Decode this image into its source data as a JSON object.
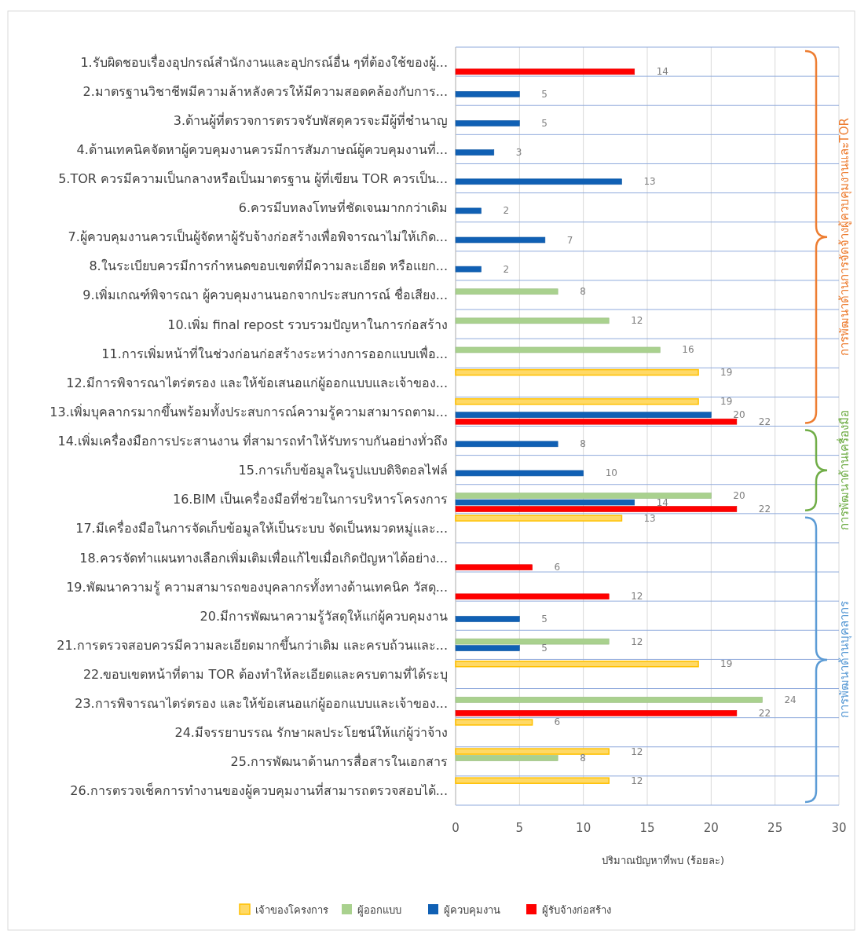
{
  "chart_data": {
    "type": "bar",
    "orientation": "horizontal",
    "xlabel": "ปริมาณปัญหาที่พบ (ร้อยละ)",
    "categories": [
      "1.รับผิดชอบเรื่องอุปกรณ์สำนักงานและอุปกรณ์อื่น ๆที่ต้องใช้ของผู้...",
      "2.มาตรฐานวิชาชีพมีความล้าหลังควรให้มีความสอดคล้องกับการ...",
      "3.ด้านผู้ที่ตรวจการตรวจรับพัสดุควรจะมีผู้ที่ชำนาญ",
      "4.ด้านเทคนิคจัดหาผู้ควบคุมงานควรมีการสัมภาษณ์ผู้ควบคุมงานที่...",
      "5.TOR ควรมีความเป็นกลางหรือเป็นมาตรฐาน ผู้ที่เขียน TOR ควรเป็น...",
      "6.ควรมีบทลงโทษที่ชัดเจนมากกว่าเดิม",
      "7.ผู้ควบคุมงานควรเป็นผู้จัดหาผู้รับจ้างก่อสร้างเพื่อพิจารณาไม่ให้เกิด...",
      "8.ในระเบียบควรมีการกำหนดขอบเขตที่มีความละเอียด หรือแยก...",
      "9.เพิ่มเกณฑ์พิจารณา ผู้ควบคุมงานนอกจากประสบการณ์ ชื่อเสียง...",
      "10.เพิ่ม final repost รวบรวมปัญหาในการก่อสร้าง",
      "11.การเพิ่มหน้าที่ในช่วงก่อนก่อสร้างระหว่างการออกแบบเพื่อ...",
      "12.มีการพิจารณาไตร่ตรอง และให้ข้อเสนอแก่ผู้ออกแบบและเจ้าของ...",
      "13.เพิ่มบุคลากรมากขึ้นพร้อมทั้งประสบการณ์ความรู้ความสามารถตาม...",
      "14.เพิ่มเครื่องมือการประสานงาน ที่สามารถทำให้รับทราบกันอย่างทั่วถึง",
      "15.การเก็บข้อมูลในรูปแบบดิจิตอลไฟล์",
      "16.BIM เป็นเครื่องมือที่ช่วยในการบริหารโครงการ",
      "17.มีเครื่องมือในการจัดเก็บข้อมูลให้เป็นระบบ จัดเป็นหมวดหมู่และ...",
      "18.ควรจัดทำแผนทางเลือกเพิ่มเติมเพื่อแก้ไขเมื่อเกิดปัญหาได้อย่าง...",
      "19.พัฒนาความรู้ ความสามารถของบุคลากรทั้งทางด้านเทคนิค วัสดุ...",
      "20.มีการพัฒนาความรู้วัสดุให้แก่ผู้ควบคุมงาน",
      "21.การตรวจสอบควรมีความละเอียดมากขึ้นกว่าเดิม และครบถ้วนและ...",
      "22.ขอบเขตหน้าที่ตาม TOR ต้องทำให้ละเอียดและครบตามที่ได้ระบุ",
      "23.การพิจารณาไตร่ตรอง และให้ข้อเสนอแก่ผู้ออกแบบและเจ้าของ...",
      "24.มีจรรยาบรรณ รักษาผลประโยชน์ให้แก่ผู้ว่าจ้าง",
      "25.การพัฒนาด้านการสื่อสารในเอกสาร",
      "26.การตรวจเช็คการทำงานของผู้ควบคุมงานที่สามารถตรวจสอบได้..."
    ],
    "series": [
      {
        "name": "เจ้าของโครงการ",
        "color": "#ffd966",
        "values": [
          null,
          null,
          null,
          null,
          null,
          null,
          null,
          null,
          null,
          null,
          null,
          19,
          19,
          null,
          null,
          null,
          13,
          null,
          null,
          null,
          null,
          19,
          null,
          6,
          12,
          12
        ]
      },
      {
        "name": "ผู้ออกแบบ",
        "color": "#a9d18e",
        "values": [
          null,
          null,
          null,
          null,
          null,
          null,
          null,
          null,
          8,
          12,
          16,
          null,
          null,
          null,
          null,
          20,
          null,
          null,
          null,
          null,
          12,
          null,
          24,
          null,
          8,
          null
        ]
      },
      {
        "name": "ผู้ควบคุมงาน",
        "color": "#1060b4",
        "values": [
          null,
          5,
          5,
          3,
          13,
          2,
          7,
          2,
          null,
          null,
          null,
          null,
          20,
          8,
          10,
          14,
          null,
          null,
          null,
          5,
          5,
          null,
          null,
          null,
          null,
          null
        ]
      },
      {
        "name": "ผู้รับจ้างก่อสร้าง",
        "color": "#ff0000",
        "values": [
          14,
          null,
          null,
          null,
          null,
          null,
          null,
          null,
          null,
          null,
          null,
          null,
          22,
          null,
          null,
          22,
          null,
          6,
          12,
          null,
          null,
          null,
          22,
          null,
          null,
          null
        ]
      }
    ],
    "xlim": [
      0,
      30
    ],
    "xticks": [
      0,
      5,
      10,
      15,
      20,
      25,
      30
    ],
    "grid": "x",
    "legend": "bottom",
    "data_labels": true,
    "annotations": [
      "การพัฒนาด้านการจัดจ้างผู้ควบคุมงานและTOR",
      "การพัฒนาด้านเครื่องมือ",
      "การพัฒนาด้านบุคลากร"
    ]
  }
}
